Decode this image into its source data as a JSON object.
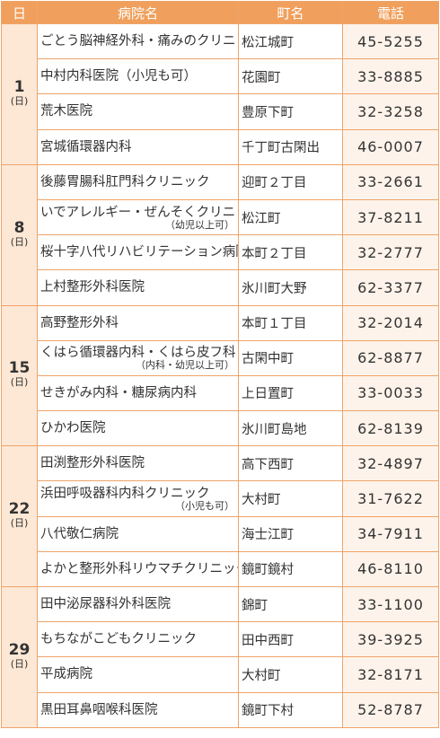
{
  "header": {
    "day": "日",
    "name": "病院名",
    "town": "町名",
    "phone": "電話"
  },
  "groups": [
    {
      "day": "1",
      "weekday": "(日)",
      "rows": [
        {
          "name": "ごとう脳神経外科・痛みのクリニック",
          "town": "松江城町",
          "phone": "45-5255"
        },
        {
          "name": "中村内科医院（小児も可）",
          "town": "花園町",
          "phone": "33-8885"
        },
        {
          "name": "荒木医院",
          "town": "豊原下町",
          "phone": "32-3258"
        },
        {
          "name": "宮城循環器内科",
          "town": "千丁町古閑出",
          "phone": "46-0007"
        }
      ]
    },
    {
      "day": "8",
      "weekday": "(日)",
      "rows": [
        {
          "name": "後藤胃腸科肛門科クリニック",
          "town": "迎町２丁目",
          "phone": "33-2661"
        },
        {
          "name": "いでアレルギー・ぜんそくクリニック",
          "note": "（幼児以上可）",
          "town": "松江町",
          "phone": "37-8211"
        },
        {
          "name": "桜十字八代リハビリテーション病院",
          "town": "本町２丁目",
          "phone": "32-2777"
        },
        {
          "name": "上村整形外科医院",
          "town": "氷川町大野",
          "phone": "62-3377"
        }
      ]
    },
    {
      "day": "15",
      "weekday": "(日)",
      "rows": [
        {
          "name": "高野整形外科",
          "town": "本町１丁目",
          "phone": "32-2014"
        },
        {
          "name": "くはら循環器内科・くはら皮フ科",
          "note": "（内科・幼児以上可）",
          "town": "古閑中町",
          "phone": "62-8877"
        },
        {
          "name": "せきがみ内科・糖尿病内科",
          "town": "上日置町",
          "phone": "33-0033"
        },
        {
          "name": "ひかわ医院",
          "town": "氷川町島地",
          "phone": "62-8139"
        }
      ]
    },
    {
      "day": "22",
      "weekday": "(日)",
      "rows": [
        {
          "name": "田渕整形外科医院",
          "town": "高下西町",
          "phone": "32-4897"
        },
        {
          "name": "浜田呼吸器科内科クリニック",
          "note": "（小児も可）",
          "town": "大村町",
          "phone": "31-7622"
        },
        {
          "name": "八代敬仁病院",
          "town": "海士江町",
          "phone": "34-7911"
        },
        {
          "name": "よかと整形外科リウマチクリニック",
          "town": "鏡町鏡村",
          "phone": "46-8110"
        }
      ]
    },
    {
      "day": "29",
      "weekday": "(日)",
      "rows": [
        {
          "name": "田中泌尿器科外科医院",
          "town": "錦町",
          "phone": "33-1100"
        },
        {
          "name": "もちながこどもクリニック",
          "town": "田中西町",
          "phone": "39-3925"
        },
        {
          "name": "平成病院",
          "town": "大村町",
          "phone": "32-8171"
        },
        {
          "name": "黒田耳鼻咽喉科医院",
          "town": "鏡町下村",
          "phone": "52-8787"
        }
      ]
    }
  ]
}
